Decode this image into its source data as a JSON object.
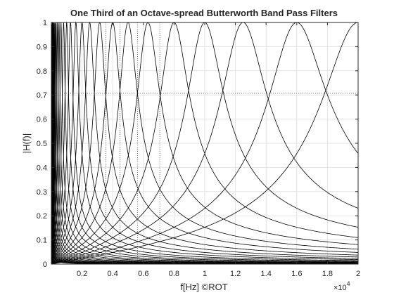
{
  "chart_data": {
    "type": "line",
    "title": "One Third of an Octave-spread Butterworth Band Pass Filters",
    "xlabel": "f[Hz] ©ROT",
    "ylabel": "|H(f)|",
    "x_exponent_label": "×10",
    "x_exponent_power": "4",
    "xlim": [
      0,
      20000
    ],
    "ylim": [
      0,
      1
    ],
    "x_ticks": [
      2000,
      4000,
      6000,
      8000,
      10000,
      12000,
      14000,
      16000,
      18000,
      20000
    ],
    "x_tick_labels": [
      "0.2",
      "0.4",
      "0.6",
      "0.8",
      "1",
      "1.2",
      "1.4",
      "1.6",
      "1.8",
      "2"
    ],
    "y_ticks": [
      0,
      0.1,
      0.2,
      0.3,
      0.4,
      0.5,
      0.6,
      0.7,
      0.8,
      0.9,
      1
    ],
    "y_tick_labels": [
      "0",
      "0.1",
      "0.2",
      "0.3",
      "0.4",
      "0.5",
      "0.6",
      "0.7",
      "0.8",
      "0.9",
      "1"
    ],
    "grid": true,
    "line_color": "#000000",
    "filter_bandwidth": "1/3 octave",
    "center_frequencies_hz": [
      20,
      25,
      31.5,
      40,
      50,
      63,
      80,
      100,
      125,
      160,
      200,
      250,
      315,
      400,
      500,
      630,
      800,
      1000,
      1250,
      1600,
      2000,
      2500,
      3150,
      4000,
      5000,
      6300,
      8000,
      10000,
      12500,
      16000,
      20000
    ],
    "reference_lines": [
      {
        "type": "horizontal",
        "y": 0.707
      },
      {
        "type": "vertical",
        "x": 7070
      },
      {
        "type": "vertical",
        "x": 5620
      },
      {
        "type": "vertical",
        "x": 4470
      },
      {
        "type": "vertical",
        "x": 3550
      }
    ]
  }
}
